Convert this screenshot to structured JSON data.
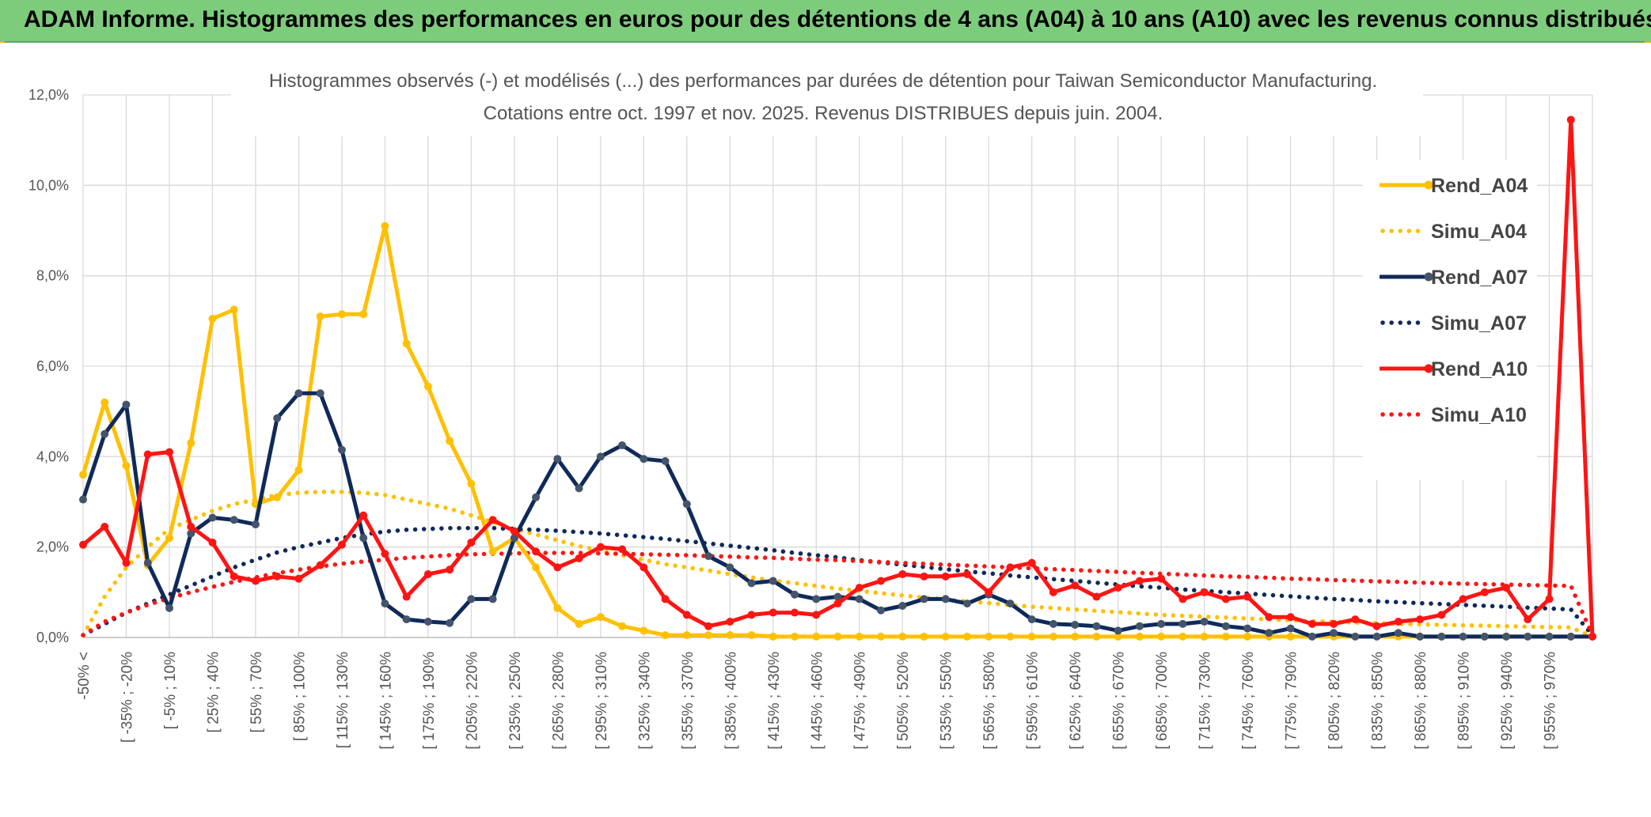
{
  "header": {
    "title": "ADAM Informe. Histogrammes des performances en euros pour des détentions de 4 ans (A04) à 10 ans (A10) avec les revenus connus distribués"
  },
  "chart_data": {
    "type": "line",
    "title": [
      "Histogrammes observés (-) et modélisés (...) des performances par durées de détention pour Taiwan Semiconductor Manufacturing.",
      "Cotations entre oct. 1997 et nov. 2025. Revenus DISTRIBUES depuis juin. 2004."
    ],
    "xlabel": "",
    "ylabel": "",
    "ylim": [
      0,
      12
    ],
    "yticks": [
      "0,0%",
      "2,0%",
      "4,0%",
      "6,0%",
      "8,0%",
      "10,0%",
      "12,0%"
    ],
    "grid": true,
    "legend_position": "right",
    "x_labels": [
      "-50% <",
      "[ -35% ; -20%",
      "[ -5% ; 10%",
      "[ 25% ; 40%",
      "[ 55% ; 70%",
      "[ 85% ; 100%",
      "[ 115% ; 130%",
      "[ 145% ; 160%",
      "[ 175% ; 190%",
      "[ 205% ; 220%",
      "[ 235% ; 250%",
      "[ 265% ; 280%",
      "[ 295% ; 310%",
      "[ 325% ; 340%",
      "[ 355% ; 370%",
      "[ 385% ; 400%",
      "[ 415% ; 430%",
      "[ 445% ; 460%",
      "[ 475% ; 490%",
      "[ 505% ; 520%",
      "[ 535% ; 550%",
      "[ 565% ; 580%",
      "[ 595% ; 610%",
      "[ 625% ; 640%",
      "[ 655% ; 670%",
      "[ 685% ; 700%",
      "[ 715% ; 730%",
      "[ 745% ; 760%",
      "[ 775% ; 790%",
      "[ 805% ; 820%",
      "[ 835% ; 850%",
      "[ 865% ; 880%",
      "[ 895% ; 910%",
      "[ 925% ; 940%",
      "[ 955% ; 970%"
    ],
    "n_points": 71,
    "series": [
      {
        "name": "Rend_A04",
        "style": "solid",
        "color": "#ffc000",
        "values": [
          3.6,
          5.2,
          3.8,
          1.6,
          2.2,
          4.3,
          7.05,
          7.25,
          2.95,
          3.1,
          3.7,
          7.1,
          7.15,
          7.15,
          9.1,
          6.5,
          5.55,
          4.35,
          3.4,
          1.9,
          2.2,
          1.55,
          0.65,
          0.3,
          0.45,
          0.25,
          0.15,
          0.05,
          0.05,
          0.05,
          0.05,
          0.05,
          0.02,
          0.02,
          0.02,
          0.02,
          0.02,
          0.02,
          0.02,
          0.02,
          0.02,
          0.02,
          0.02,
          0.02,
          0.02,
          0.02,
          0.02,
          0.02,
          0.02,
          0.02,
          0.02,
          0.02,
          0.02,
          0.02,
          0.02,
          0.02,
          0.02,
          0.02,
          0.02,
          0.02,
          0.02,
          0.02,
          0.02,
          0.02,
          0.02,
          0.02,
          0.02,
          0.02,
          0.02,
          0.02,
          0.02
        ]
      },
      {
        "name": "Simu_A04",
        "style": "dotted",
        "color": "#ffc000",
        "values": [
          0.05,
          0.9,
          1.55,
          2.0,
          2.4,
          2.6,
          2.8,
          2.95,
          3.05,
          3.15,
          3.2,
          3.22,
          3.22,
          3.2,
          3.15,
          3.05,
          2.95,
          2.85,
          2.7,
          2.55,
          2.4,
          2.28,
          2.15,
          2.02,
          1.92,
          1.82,
          1.72,
          1.62,
          1.55,
          1.48,
          1.4,
          1.33,
          1.26,
          1.2,
          1.14,
          1.08,
          1.03,
          0.98,
          0.93,
          0.88,
          0.84,
          0.8,
          0.76,
          0.72,
          0.68,
          0.65,
          0.62,
          0.59,
          0.56,
          0.53,
          0.5,
          0.48,
          0.46,
          0.44,
          0.42,
          0.4,
          0.38,
          0.36,
          0.35,
          0.33,
          0.32,
          0.3,
          0.29,
          0.28,
          0.27,
          0.26,
          0.25,
          0.24,
          0.23,
          0.22,
          0.02
        ]
      },
      {
        "name": "Rend_A07",
        "style": "solid",
        "color": "#0f2a5a",
        "values": [
          3.05,
          4.5,
          5.15,
          1.65,
          0.65,
          2.3,
          2.65,
          2.6,
          2.5,
          4.85,
          5.4,
          5.4,
          4.15,
          2.2,
          0.75,
          0.4,
          0.35,
          0.32,
          0.85,
          0.85,
          2.2,
          3.1,
          3.95,
          3.3,
          4.0,
          4.25,
          3.95,
          3.9,
          2.95,
          1.8,
          1.55,
          1.2,
          1.25,
          0.95,
          0.85,
          0.9,
          0.85,
          0.6,
          0.7,
          0.85,
          0.85,
          0.75,
          0.95,
          0.75,
          0.4,
          0.3,
          0.28,
          0.25,
          0.15,
          0.25,
          0.3,
          0.3,
          0.35,
          0.25,
          0.2,
          0.1,
          0.2,
          0.02,
          0.1,
          0.02,
          0.02,
          0.1,
          0.02,
          0.02,
          0.02,
          0.02,
          0.02,
          0.02,
          0.02,
          0.02,
          0.02
        ]
      },
      {
        "name": "Simu_A07",
        "style": "dotted",
        "color": "#0f2a5a",
        "values": [
          0.05,
          0.3,
          0.55,
          0.75,
          0.95,
          1.15,
          1.35,
          1.55,
          1.72,
          1.88,
          2.0,
          2.1,
          2.2,
          2.28,
          2.34,
          2.38,
          2.4,
          2.42,
          2.42,
          2.42,
          2.4,
          2.38,
          2.36,
          2.33,
          2.3,
          2.26,
          2.22,
          2.18,
          2.13,
          2.08,
          2.03,
          1.98,
          1.93,
          1.87,
          1.82,
          1.77,
          1.71,
          1.66,
          1.61,
          1.56,
          1.51,
          1.46,
          1.42,
          1.37,
          1.33,
          1.29,
          1.25,
          1.21,
          1.17,
          1.13,
          1.1,
          1.06,
          1.03,
          1.0,
          0.97,
          0.94,
          0.91,
          0.88,
          0.85,
          0.83,
          0.8,
          0.78,
          0.76,
          0.74,
          0.72,
          0.7,
          0.68,
          0.66,
          0.64,
          0.62,
          0.05
        ]
      },
      {
        "name": "Rend_A10",
        "style": "solid",
        "color": "#ff1414",
        "values": [
          2.05,
          2.45,
          1.65,
          4.05,
          4.1,
          2.45,
          2.1,
          1.35,
          1.25,
          1.35,
          1.3,
          1.6,
          2.05,
          2.7,
          1.85,
          0.9,
          1.4,
          1.5,
          2.1,
          2.6,
          2.35,
          1.9,
          1.55,
          1.75,
          2.0,
          1.95,
          1.55,
          0.85,
          0.5,
          0.25,
          0.35,
          0.5,
          0.55,
          0.55,
          0.5,
          0.75,
          1.1,
          1.25,
          1.4,
          1.35,
          1.35,
          1.4,
          1.0,
          1.55,
          1.65,
          1.0,
          1.15,
          0.9,
          1.1,
          1.25,
          1.3,
          0.85,
          1.0,
          0.85,
          0.9,
          0.45,
          0.45,
          0.3,
          0.3,
          0.4,
          0.25,
          0.35,
          0.4,
          0.5,
          0.85,
          1.0,
          1.1,
          0.4,
          0.85,
          11.45,
          0.02
        ]
      },
      {
        "name": "Simu_A10",
        "style": "dotted",
        "color": "#ff1414",
        "values": [
          0.05,
          0.35,
          0.55,
          0.72,
          0.87,
          1.0,
          1.12,
          1.23,
          1.33,
          1.42,
          1.5,
          1.57,
          1.63,
          1.68,
          1.72,
          1.76,
          1.79,
          1.82,
          1.84,
          1.85,
          1.86,
          1.87,
          1.87,
          1.87,
          1.86,
          1.85,
          1.84,
          1.83,
          1.82,
          1.8,
          1.79,
          1.77,
          1.76,
          1.74,
          1.72,
          1.71,
          1.69,
          1.67,
          1.65,
          1.63,
          1.61,
          1.59,
          1.57,
          1.55,
          1.53,
          1.51,
          1.49,
          1.47,
          1.45,
          1.43,
          1.41,
          1.39,
          1.37,
          1.35,
          1.34,
          1.32,
          1.3,
          1.29,
          1.27,
          1.26,
          1.24,
          1.23,
          1.21,
          1.2,
          1.19,
          1.18,
          1.17,
          1.16,
          1.15,
          1.14,
          0.05
        ]
      }
    ]
  }
}
